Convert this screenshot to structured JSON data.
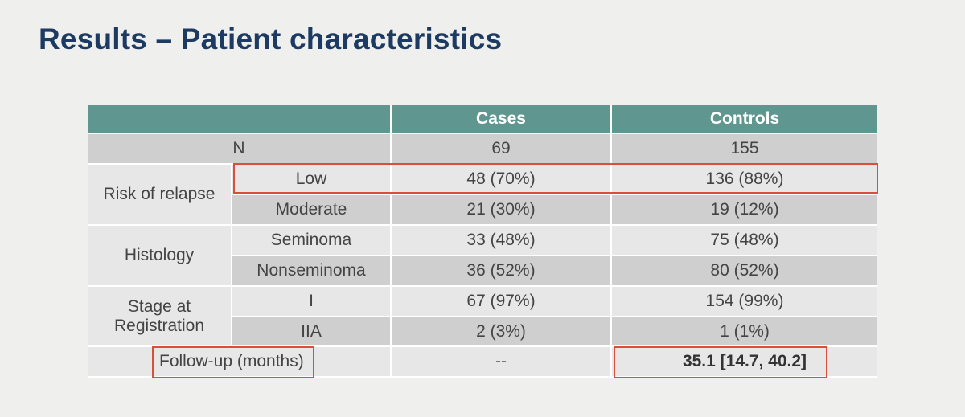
{
  "slide": {
    "title": "Results – Patient characteristics"
  },
  "table": {
    "headers": [
      "",
      "Cases",
      "Controls"
    ],
    "n_row": {
      "label": "N",
      "cases": "69",
      "controls": "155"
    },
    "risk": {
      "label": "Risk of relapse",
      "low": {
        "label": "Low",
        "cases": "48 (70%)",
        "controls": "136 (88%)"
      },
      "moderate": {
        "label": "Moderate",
        "cases": "21 (30%)",
        "controls": "19 (12%)"
      }
    },
    "histology": {
      "label": "Histology",
      "seminoma": {
        "label": "Seminoma",
        "cases": "33 (48%)",
        "controls": "75 (48%)"
      },
      "nonseminoma": {
        "label": "Nonseminoma",
        "cases": "36 (52%)",
        "controls": "80 (52%)"
      }
    },
    "stage": {
      "label_line1": "Stage at",
      "label_line2": "Registration",
      "i": {
        "label": "I",
        "cases": "67 (97%)",
        "controls": "154 (99%)"
      },
      "iia": {
        "label": "IIA",
        "cases": "2 (3%)",
        "controls": "1 (1%)"
      }
    },
    "followup": {
      "label": "Follow-up (months)",
      "cases": "--",
      "controls": "35.1 [14.7, 40.2]"
    }
  },
  "colors": {
    "title": "#1c3a62",
    "header_bg": "#5f9690",
    "row_dark": "#cfcfcf",
    "row_light": "#e7e7e7",
    "highlight_border": "#d9503a"
  }
}
